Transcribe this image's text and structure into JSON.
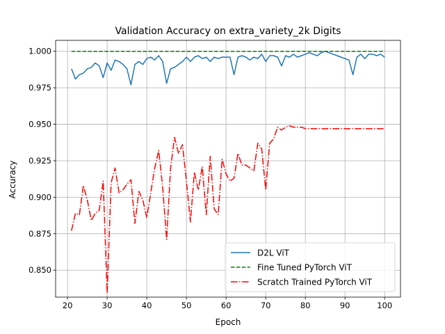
{
  "chart_data": {
    "type": "line",
    "title": "Validation Accuracy on extra_variety_2k Digits",
    "xlabel": "Epoch",
    "ylabel": "Accuracy",
    "xlim": [
      17,
      104
    ],
    "ylim": [
      0.8315,
      1.0075
    ],
    "xticks": [
      "20",
      "30",
      "40",
      "50",
      "60",
      "70",
      "80",
      "90",
      "100"
    ],
    "yticks": [
      "0.850",
      "0.875",
      "0.900",
      "0.925",
      "0.950",
      "0.975",
      "1.000"
    ],
    "grid": true,
    "legend_position": "lower-right",
    "x": [
      21,
      22,
      23,
      24,
      25,
      26,
      27,
      28,
      29,
      30,
      31,
      32,
      33,
      34,
      35,
      36,
      37,
      38,
      39,
      40,
      41,
      42,
      43,
      44,
      45,
      46,
      47,
      48,
      49,
      50,
      51,
      52,
      53,
      54,
      55,
      56,
      57,
      58,
      59,
      60,
      61,
      62,
      63,
      64,
      65,
      66,
      67,
      68,
      69,
      70,
      71,
      72,
      73,
      74,
      75,
      76,
      77,
      78,
      79,
      80,
      81,
      82,
      83,
      84,
      85,
      86,
      87,
      88,
      89,
      90,
      91,
      92,
      93,
      94,
      95,
      96,
      97,
      98,
      99,
      100
    ],
    "series": [
      {
        "name": "D2L ViT",
        "color": "#1f77b4",
        "style": "solid",
        "values": [
          0.988,
          0.981,
          0.984,
          0.985,
          0.988,
          0.989,
          0.992,
          0.99,
          0.982,
          0.992,
          0.987,
          0.994,
          0.993,
          0.991,
          0.988,
          0.977,
          0.991,
          0.993,
          0.991,
          0.995,
          0.996,
          0.994,
          0.997,
          0.993,
          0.978,
          0.988,
          0.989,
          0.991,
          0.993,
          0.996,
          0.993,
          0.996,
          0.997,
          0.995,
          0.996,
          0.993,
          0.996,
          0.995,
          0.996,
          0.996,
          0.996,
          0.984,
          0.996,
          0.997,
          0.996,
          0.994,
          0.996,
          0.995,
          0.998,
          0.993,
          0.997,
          0.997,
          0.996,
          0.99,
          0.997,
          0.996,
          0.998,
          0.996,
          0.997,
          0.998,
          0.999,
          0.998,
          0.997,
          0.999,
          1.0,
          0.999,
          0.998,
          0.997,
          0.996,
          0.995,
          0.994,
          0.984,
          0.996,
          0.998,
          0.995,
          0.998,
          0.998,
          0.997,
          0.998,
          0.996
        ]
      },
      {
        "name": "Fine Tuned PyTorch ViT",
        "color": "#008000",
        "style": "dashed",
        "values": [
          1.0,
          1.0,
          1.0,
          1.0,
          1.0,
          1.0,
          1.0,
          1.0,
          1.0,
          1.0,
          1.0,
          1.0,
          1.0,
          1.0,
          1.0,
          1.0,
          1.0,
          1.0,
          1.0,
          1.0,
          1.0,
          1.0,
          1.0,
          1.0,
          1.0,
          1.0,
          1.0,
          1.0,
          1.0,
          1.0,
          1.0,
          1.0,
          1.0,
          1.0,
          1.0,
          1.0,
          1.0,
          1.0,
          1.0,
          1.0,
          1.0,
          1.0,
          1.0,
          1.0,
          1.0,
          1.0,
          1.0,
          1.0,
          1.0,
          1.0,
          1.0,
          1.0,
          1.0,
          1.0,
          1.0,
          1.0,
          1.0,
          1.0,
          1.0,
          1.0,
          1.0,
          1.0,
          1.0,
          1.0,
          1.0,
          1.0,
          1.0,
          1.0,
          1.0,
          1.0,
          1.0,
          1.0,
          1.0,
          1.0,
          1.0,
          1.0,
          1.0,
          1.0,
          1.0,
          1.0
        ]
      },
      {
        "name": "Scratch Trained PyTorch ViT",
        "color": "#ff0000",
        "style": "dashdot",
        "values": [
          0.877,
          0.889,
          0.888,
          0.908,
          0.898,
          0.884,
          0.889,
          0.891,
          0.911,
          0.834,
          0.91,
          0.92,
          0.903,
          0.905,
          0.909,
          0.912,
          0.882,
          0.904,
          0.898,
          0.886,
          0.903,
          0.92,
          0.932,
          0.907,
          0.871,
          0.92,
          0.941,
          0.93,
          0.936,
          0.911,
          0.883,
          0.917,
          0.905,
          0.921,
          0.888,
          0.928,
          0.892,
          0.888,
          0.926,
          0.916,
          0.911,
          0.913,
          0.93,
          0.922,
          0.922,
          0.92,
          0.918,
          0.937,
          0.933,
          0.905,
          0.937,
          0.94,
          0.948,
          0.946,
          0.948,
          0.949,
          0.948,
          0.948,
          0.948,
          0.947,
          0.947,
          0.947,
          0.947,
          0.947,
          0.947,
          0.947,
          0.947,
          0.947,
          0.947,
          0.947,
          0.947,
          0.947,
          0.947,
          0.947,
          0.947,
          0.947,
          0.947,
          0.947,
          0.947,
          0.947
        ]
      }
    ]
  }
}
